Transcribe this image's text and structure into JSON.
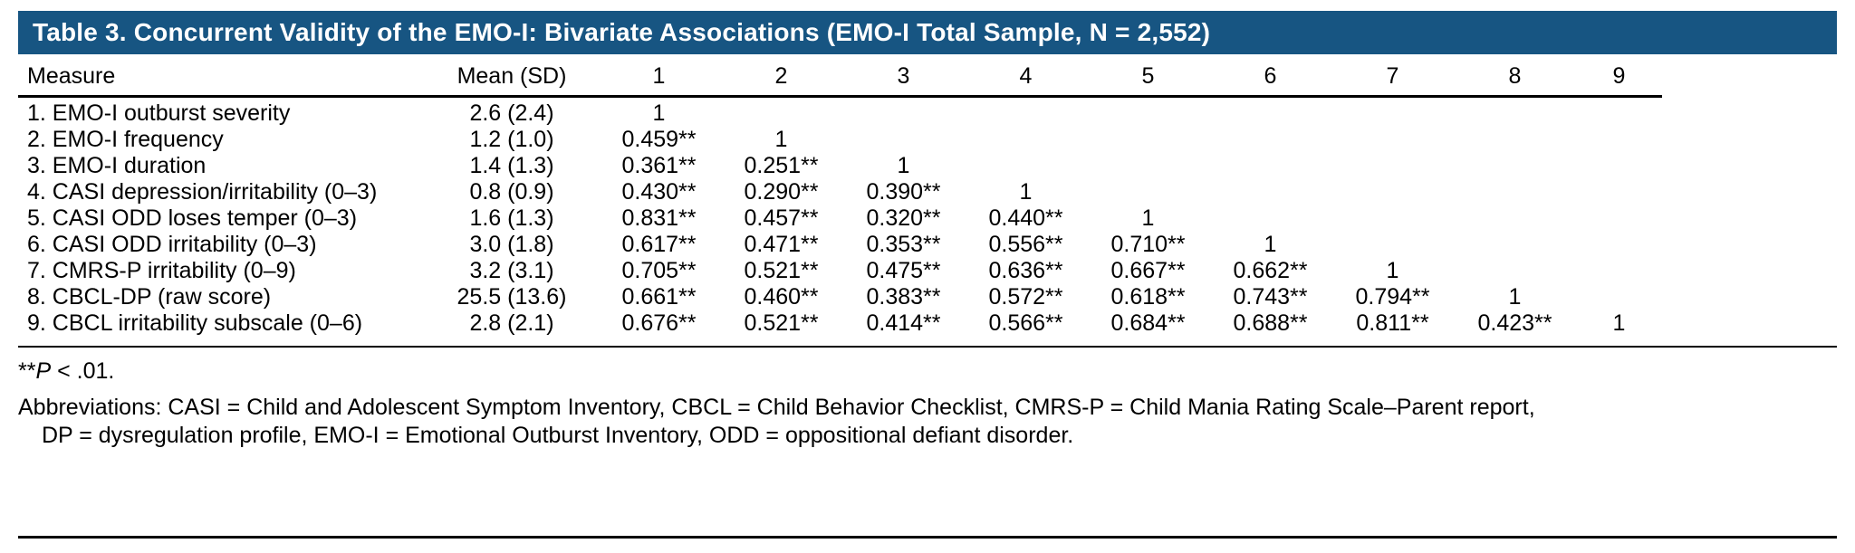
{
  "colors": {
    "title_bar_bg": "#175582",
    "title_text": "#ffffff",
    "body_text": "#000000",
    "rule": "#000000"
  },
  "table": {
    "title": "Table 3. Concurrent Validity of the EMO-I: Bivariate Associations (EMO-I Total Sample, N = 2,552)",
    "columns": [
      "Measure",
      "Mean (SD)",
      "1",
      "2",
      "3",
      "4",
      "5",
      "6",
      "7",
      "8",
      "9"
    ],
    "rows": [
      {
        "measure": "1. EMO-I outburst severity",
        "mean_sd": "2.6 (2.4)",
        "r": [
          "1",
          "",
          "",
          "",
          "",
          "",
          "",
          "",
          ""
        ]
      },
      {
        "measure": "2. EMO-I frequency",
        "mean_sd": "1.2 (1.0)",
        "r": [
          "0.459**",
          "1",
          "",
          "",
          "",
          "",
          "",
          "",
          ""
        ]
      },
      {
        "measure": "3. EMO-I duration",
        "mean_sd": "1.4 (1.3)",
        "r": [
          "0.361**",
          "0.251**",
          "1",
          "",
          "",
          "",
          "",
          "",
          ""
        ]
      },
      {
        "measure": "4. CASI depression/irritability (0–3)",
        "mean_sd": "0.8 (0.9)",
        "r": [
          "0.430**",
          "0.290**",
          "0.390**",
          "1",
          "",
          "",
          "",
          "",
          ""
        ]
      },
      {
        "measure": "5. CASI ODD loses temper (0–3)",
        "mean_sd": "1.6 (1.3)",
        "r": [
          "0.831**",
          "0.457**",
          "0.320**",
          "0.440**",
          "1",
          "",
          "",
          "",
          ""
        ]
      },
      {
        "measure": "6. CASI ODD irritability (0–3)",
        "mean_sd": "3.0 (1.8)",
        "r": [
          "0.617**",
          "0.471**",
          "0.353**",
          "0.556**",
          "0.710**",
          "1",
          "",
          "",
          ""
        ]
      },
      {
        "measure": "7. CMRS-P irritability (0–9)",
        "mean_sd": "3.2 (3.1)",
        "r": [
          "0.705**",
          "0.521**",
          "0.475**",
          "0.636**",
          "0.667**",
          "0.662**",
          "1",
          "",
          ""
        ]
      },
      {
        "measure": "8. CBCL-DP (raw score)",
        "mean_sd": "25.5 (13.6)",
        "r": [
          "0.661**",
          "0.460**",
          "0.383**",
          "0.572**",
          "0.618**",
          "0.743**",
          "0.794**",
          "1",
          ""
        ]
      },
      {
        "measure": "9. CBCL irritability subscale (0–6)",
        "mean_sd": "2.8 (2.1)",
        "r": [
          "0.676**",
          "0.521**",
          "0.414**",
          "0.566**",
          "0.684**",
          "0.688**",
          "0.811**",
          "0.423**",
          "1"
        ]
      }
    ]
  },
  "footnotes": {
    "significance_stars": "**",
    "significance_p": "P",
    "significance_rest": " < .01.",
    "abbreviations_line1": "Abbreviations: CASI = Child and Adolescent Symptom Inventory, CBCL = Child Behavior Checklist, CMRS-P = Child Mania Rating Scale–Parent report,",
    "abbreviations_line2": "DP = dysregulation profile, EMO-I = Emotional Outburst Inventory, ODD = oppositional defiant disorder."
  }
}
